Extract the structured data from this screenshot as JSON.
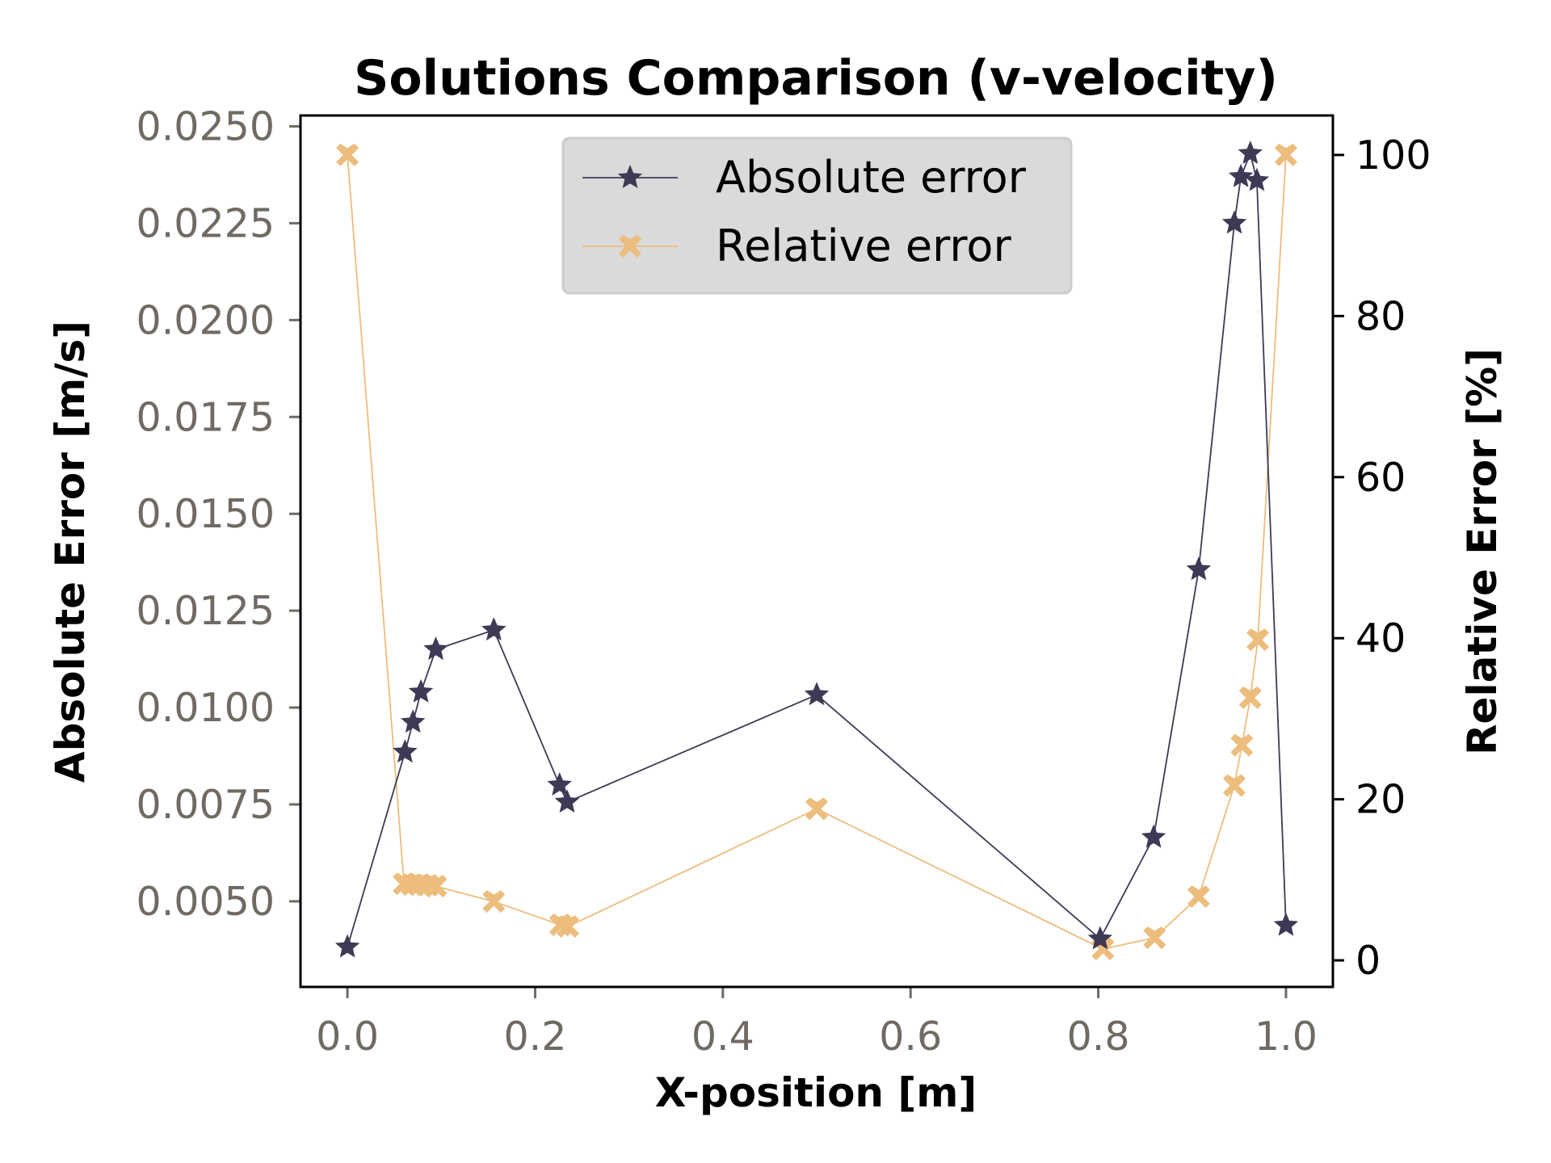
{
  "chart_data": {
    "type": "line",
    "title": "Solutions Comparison (v-velocity)",
    "xlabel": "X-position [m]",
    "ylabel": "Absolute Error [m/s]",
    "ylabel_right": "Relative Error [%]",
    "xlim": [
      -0.05,
      1.05
    ],
    "ylim": [
      0.00279,
      0.02528
    ],
    "ylim_right": [
      -3.3,
      104.9
    ],
    "xticks": [
      0.0,
      0.2,
      0.4,
      0.6,
      0.8,
      1.0
    ],
    "xtick_labels": [
      "0.0",
      "0.2",
      "0.4",
      "0.6",
      "0.8",
      "1.0"
    ],
    "yticks": [
      0.005,
      0.0075,
      0.01,
      0.0125,
      0.015,
      0.0175,
      0.02,
      0.0225,
      0.025
    ],
    "ytick_labels": [
      "0.0050",
      "0.0075",
      "0.0100",
      "0.0125",
      "0.0150",
      "0.0175",
      "0.0200",
      "0.0225",
      "0.0250"
    ],
    "yticks_right": [
      0,
      20,
      40,
      60,
      80,
      100
    ],
    "ytick_labels_right": [
      "0",
      "20",
      "40",
      "60",
      "80",
      "100"
    ],
    "grid": false,
    "legend_position": "top-center",
    "series": [
      {
        "name": "Absolute error",
        "axis": "left",
        "color": "#3d3a55",
        "marker": "star",
        "x": [
          0.0,
          0.0614,
          0.0698,
          0.0783,
          0.0942,
          0.156,
          0.226,
          0.234,
          0.5,
          0.802,
          0.859,
          0.907,
          0.945,
          0.952,
          0.962,
          0.969,
          1.0
        ],
        "y": [
          0.00382,
          0.00885,
          0.00962,
          0.0104,
          0.0115,
          0.012,
          0.008,
          0.00756,
          0.01033,
          0.00403,
          0.00665,
          0.01356,
          0.0225,
          0.0237,
          0.0243,
          0.0236,
          0.00438
        ]
      },
      {
        "name": "Relative error",
        "axis": "right",
        "color": "#ecbd7d",
        "marker": "x-filled",
        "x": [
          0.0,
          0.0603,
          0.0688,
          0.0772,
          0.0857,
          0.0942,
          0.156,
          0.227,
          0.235,
          0.5,
          0.805,
          0.86,
          0.907,
          0.945,
          0.953,
          0.962,
          0.97,
          1.0
        ],
        "y": [
          100,
          9.5,
          9.4,
          9.4,
          9.3,
          9.2,
          7.3,
          4.4,
          4.2,
          18.8,
          1.4,
          2.8,
          7.9,
          21.7,
          26.7,
          32.6,
          39.8,
          100
        ]
      }
    ]
  }
}
